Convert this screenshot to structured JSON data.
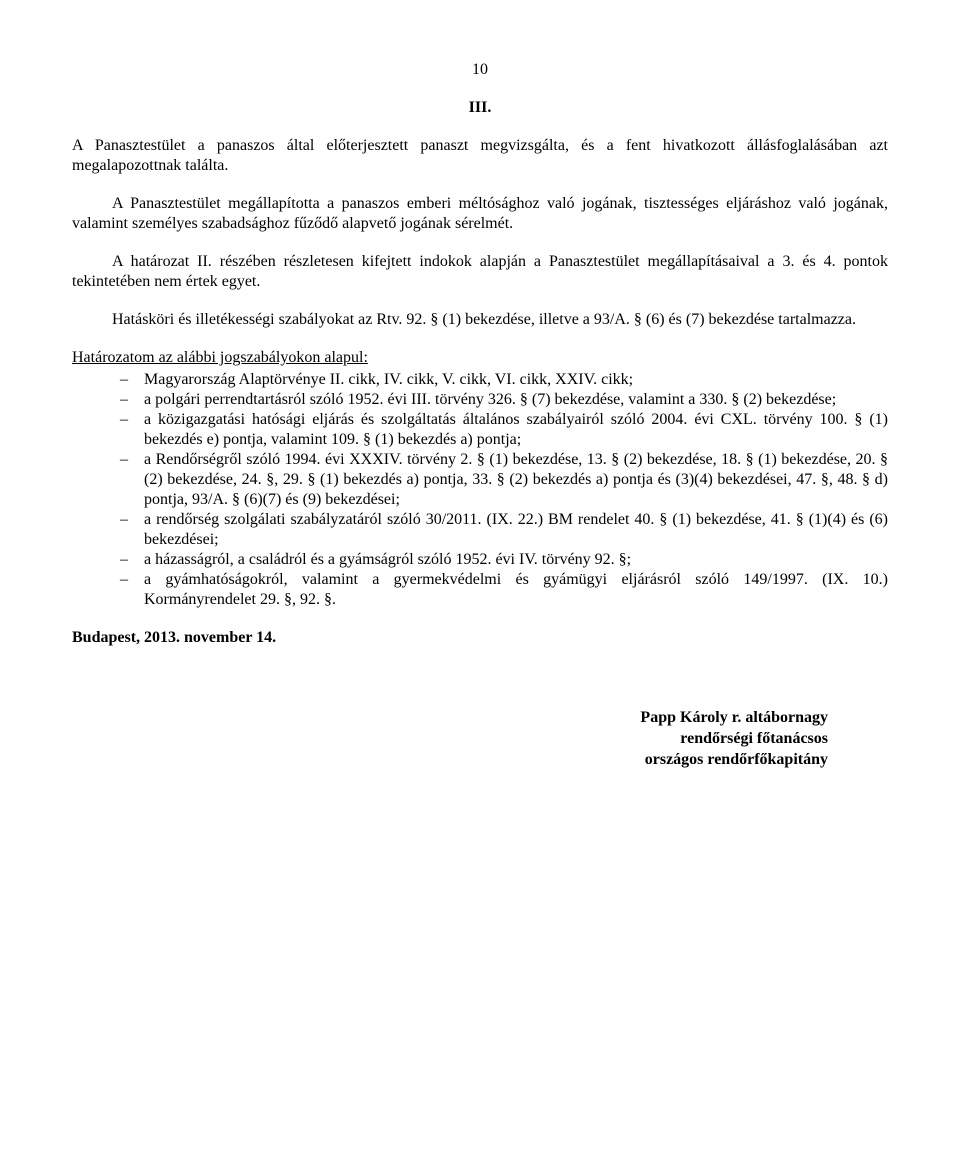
{
  "page_number": "10",
  "section_heading": "III.",
  "paragraphs": {
    "p1": "A Panasztestület a panaszos által előterjesztett panaszt megvizsgálta, és a fent hivatkozott állásfoglalásában azt megalapozottnak találta.",
    "p2": "A Panasztestület megállapította a panaszos emberi méltósághoz való jogának, tisztességes eljáráshoz való jogának, valamint személyes szabadsághoz fűződő alapvető jogának sérelmét.",
    "p3": "A határozat II. részében részletesen kifejtett indokok alapján a Panasztestület megállapításaival a 3. és 4. pontok tekintetében nem értek egyet.",
    "p4": "Hatásköri és illetékességi szabályokat az Rtv. 92. § (1) bekezdése, illetve a 93/A. § (6) és (7) bekezdése tartalmazza."
  },
  "legal_basis_title": "Határozatom az alábbi jogszabályokon alapul:",
  "legal_items": [
    "Magyarország Alaptörvénye II. cikk, IV. cikk, V. cikk, VI. cikk, XXIV. cikk;",
    "a polgári perrendtartásról szóló 1952. évi III. törvény 326. § (7) bekezdése, valamint a 330. § (2) bekezdése;",
    "a közigazgatási hatósági eljárás és szolgáltatás általános szabályairól szóló 2004. évi CXL. törvény 100. § (1) bekezdés e) pontja, valamint 109. § (1) bekezdés a) pontja;",
    "a Rendőrségről szóló 1994. évi XXXIV. törvény 2. § (1) bekezdése, 13. § (2) bekezdése, 18. § (1) bekezdése, 20. § (2) bekezdése, 24. §, 29. § (1) bekezdés a) pontja, 33. § (2) bekezdés a) pontja és (3)(4) bekezdései, 47. §, 48. § d) pontja, 93/A. § (6)(7) és (9) bekezdései;",
    "a rendőrség szolgálati szabályzatáról szóló 30/2011. (IX. 22.) BM rendelet 40. § (1) bekezdése, 41. § (1)(4) és (6) bekezdései;",
    "a házasságról, a családról és a gyámságról szóló 1952. évi IV. törvény 92. §;",
    "a gyámhatóságokról, valamint a gyermekvédelmi és gyámügyi eljárásról szóló 149/1997. (IX. 10.) Kormányrendelet 29. §, 92. §."
  ],
  "date_line": "Budapest, 2013. november 14.",
  "signature": {
    "name": "Papp Károly r. altábornagy",
    "title1": "rendőrségi főtanácsos",
    "title2": "országos rendőrfőkapitány"
  }
}
